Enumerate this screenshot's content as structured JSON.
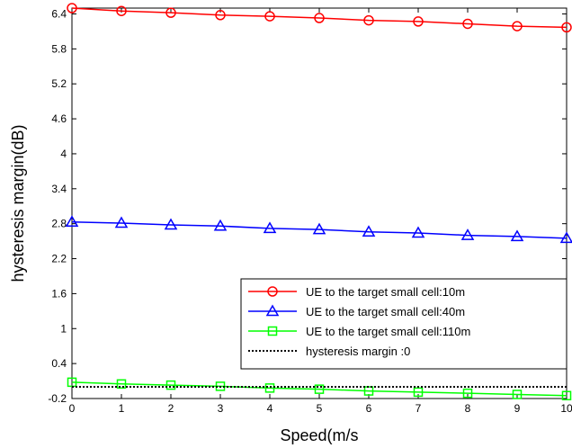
{
  "chart_data": {
    "type": "line",
    "title": "",
    "xlabel": "Speed(m/s",
    "ylabel": "hysteresis margin(dB)",
    "xlim": [
      0,
      10
    ],
    "ylim": [
      -0.2,
      6.5
    ],
    "xticks": [
      0,
      1,
      2,
      3,
      4,
      5,
      6,
      7,
      8,
      9,
      10
    ],
    "xtick_labels": [
      "0",
      "1",
      "2",
      "3",
      "4",
      "5",
      "6",
      "7",
      "8",
      "9",
      "10"
    ],
    "yticks": [
      -0.2,
      0.4,
      1,
      1.6,
      2.2,
      2.8,
      3.4,
      4,
      4.6,
      5.2,
      5.8,
      6.4
    ],
    "ytick_labels": [
      "-0.2",
      "0.4",
      "1",
      "1.6",
      "2.2",
      "2.8",
      "3.4",
      "4",
      "4.6",
      "5.2",
      "5.8",
      "6.4"
    ],
    "grid": false,
    "legend_position": "bottom-right",
    "series": [
      {
        "name": "UE to the target small cell:10m",
        "color": "#ff0000",
        "marker": "circle",
        "line_style": "solid",
        "x": [
          0,
          1,
          2,
          3,
          4,
          5,
          6,
          7,
          8,
          9,
          10
        ],
        "values": [
          6.5,
          6.45,
          6.42,
          6.38,
          6.36,
          6.33,
          6.29,
          6.27,
          6.23,
          6.19,
          6.17
        ]
      },
      {
        "name": "UE to the target small cell:40m",
        "color": "#0000ff",
        "marker": "triangle",
        "line_style": "solid",
        "x": [
          0,
          1,
          2,
          3,
          4,
          5,
          6,
          7,
          8,
          9,
          10
        ],
        "values": [
          2.83,
          2.81,
          2.78,
          2.76,
          2.72,
          2.7,
          2.66,
          2.64,
          2.6,
          2.58,
          2.55
        ]
      },
      {
        "name": "UE to the target small cell:110m",
        "color": "#00ff00",
        "marker": "square",
        "line_style": "solid",
        "x": [
          0,
          1,
          2,
          3,
          4,
          5,
          6,
          7,
          8,
          9,
          10
        ],
        "values": [
          0.08,
          0.05,
          0.03,
          0.01,
          -0.02,
          -0.04,
          -0.07,
          -0.09,
          -0.11,
          -0.13,
          -0.15
        ]
      },
      {
        "name": "hysteresis margin :0",
        "color": "#000000",
        "marker": "none",
        "line_style": "dotted",
        "x": [
          0,
          10
        ],
        "values": [
          0,
          0
        ]
      }
    ]
  }
}
